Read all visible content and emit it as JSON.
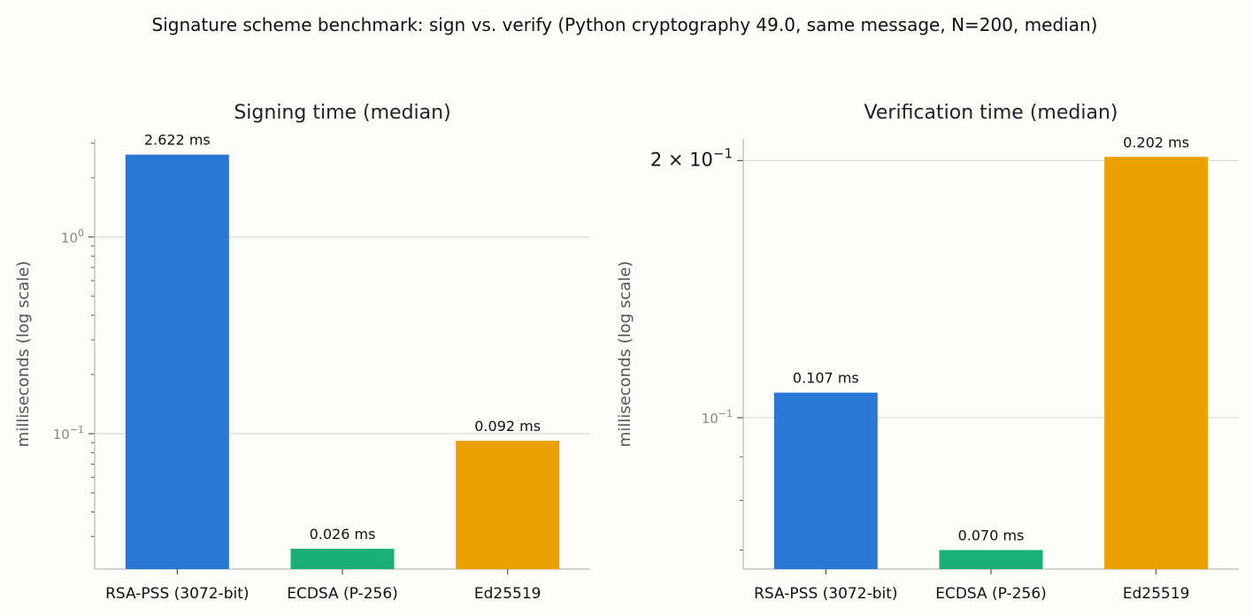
{
  "suptitle": "Signature scheme benchmark: sign vs. verify (Python cryptography 49.0, same message, N=200, median)",
  "chart_data": [
    {
      "type": "bar",
      "title": "Signing time (median)",
      "ylabel": "milliseconds (log scale)",
      "yscale": "log",
      "categories": [
        "RSA-PSS (3072-bit)",
        "ECDSA (P-256)",
        "Ed25519"
      ],
      "values": [
        2.622,
        0.026,
        0.092
      ],
      "data_labels": [
        "2.622 ms",
        "0.026 ms",
        "0.092 ms"
      ],
      "colors": [
        "#2a78d6",
        "#1aaf78",
        "#eca000"
      ],
      "ylim": [
        0.0205,
        3.15
      ],
      "major_ticks": [
        {
          "value": 1,
          "label": "10",
          "exp": "0"
        },
        {
          "value": 0.1,
          "label": "10",
          "exp": "−1"
        }
      ],
      "grid": true
    },
    {
      "type": "bar",
      "title": "Verification time (median)",
      "ylabel": "milliseconds (log scale)",
      "yscale": "log",
      "categories": [
        "RSA-PSS (3072-bit)",
        "ECDSA (P-256)",
        "Ed25519"
      ],
      "values": [
        0.107,
        0.07,
        0.202
      ],
      "data_labels": [
        "0.107 ms",
        "0.070 ms",
        "0.202 ms"
      ],
      "colors": [
        "#2a78d6",
        "#1aaf78",
        "#eca000"
      ],
      "ylim": [
        0.0665,
        0.212
      ],
      "major_ticks": [
        {
          "value": 0.1,
          "label": "10",
          "exp": "−1"
        },
        {
          "value": 0.2,
          "label": "2 × 10",
          "exp": "−1"
        }
      ],
      "grid": true
    }
  ]
}
